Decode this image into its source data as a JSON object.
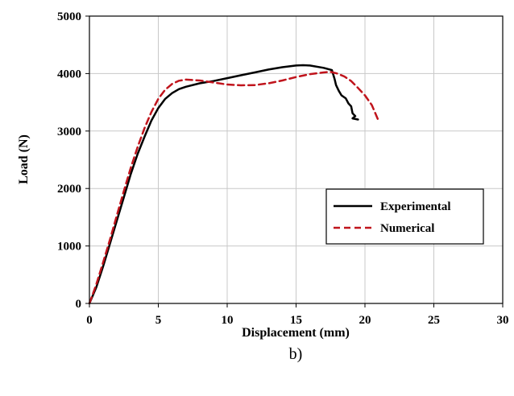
{
  "chart_data": {
    "type": "line",
    "xlabel": "Displacement (mm)",
    "ylabel": "Load (N)",
    "caption": "b)",
    "xlim": [
      0,
      30
    ],
    "ylim": [
      0,
      5000
    ],
    "x_ticks": [
      0,
      5,
      10,
      15,
      20,
      25,
      30
    ],
    "y_ticks": [
      0,
      1000,
      2000,
      3000,
      4000,
      5000
    ],
    "grid": true,
    "legend_position": "right",
    "series": [
      {
        "name": "Experimental",
        "color": "#000000",
        "dash": "solid",
        "points": [
          [
            0,
            0
          ],
          [
            0.5,
            280
          ],
          [
            1,
            650
          ],
          [
            1.5,
            1050
          ],
          [
            2,
            1450
          ],
          [
            2.5,
            1850
          ],
          [
            3,
            2250
          ],
          [
            3.5,
            2600
          ],
          [
            4,
            2900
          ],
          [
            4.5,
            3180
          ],
          [
            5,
            3400
          ],
          [
            5.5,
            3560
          ],
          [
            6,
            3660
          ],
          [
            6.5,
            3730
          ],
          [
            7,
            3770
          ],
          [
            8,
            3830
          ],
          [
            9,
            3870
          ],
          [
            10,
            3920
          ],
          [
            11,
            3970
          ],
          [
            12,
            4020
          ],
          [
            13,
            4070
          ],
          [
            14,
            4110
          ],
          [
            15,
            4140
          ],
          [
            15.5,
            4145
          ],
          [
            16,
            4140
          ],
          [
            17,
            4100
          ],
          [
            17.6,
            4060
          ],
          [
            17.8,
            3900
          ],
          [
            17.9,
            3800
          ],
          [
            18.1,
            3700
          ],
          [
            18.3,
            3620
          ],
          [
            18.6,
            3570
          ],
          [
            18.8,
            3480
          ],
          [
            19,
            3430
          ],
          [
            19.1,
            3310
          ],
          [
            19.3,
            3260
          ],
          [
            19.1,
            3220
          ],
          [
            19.5,
            3200
          ]
        ]
      },
      {
        "name": "Numerical",
        "color": "#c0141c",
        "dash": "dashed",
        "points": [
          [
            0,
            0
          ],
          [
            0.5,
            330
          ],
          [
            1,
            720
          ],
          [
            1.5,
            1120
          ],
          [
            2,
            1540
          ],
          [
            2.5,
            1960
          ],
          [
            3,
            2360
          ],
          [
            3.5,
            2720
          ],
          [
            4,
            3050
          ],
          [
            4.5,
            3330
          ],
          [
            5,
            3560
          ],
          [
            5.5,
            3720
          ],
          [
            6,
            3820
          ],
          [
            6.5,
            3875
          ],
          [
            7,
            3895
          ],
          [
            8,
            3880
          ],
          [
            9,
            3845
          ],
          [
            10,
            3810
          ],
          [
            11,
            3795
          ],
          [
            12,
            3800
          ],
          [
            13,
            3830
          ],
          [
            14,
            3880
          ],
          [
            15,
            3940
          ],
          [
            16,
            3990
          ],
          [
            17,
            4020
          ],
          [
            17.5,
            4030
          ],
          [
            18,
            4000
          ],
          [
            18.5,
            3950
          ],
          [
            19,
            3870
          ],
          [
            19.5,
            3750
          ],
          [
            20,
            3620
          ],
          [
            20.5,
            3450
          ],
          [
            21,
            3170
          ]
        ]
      }
    ]
  }
}
